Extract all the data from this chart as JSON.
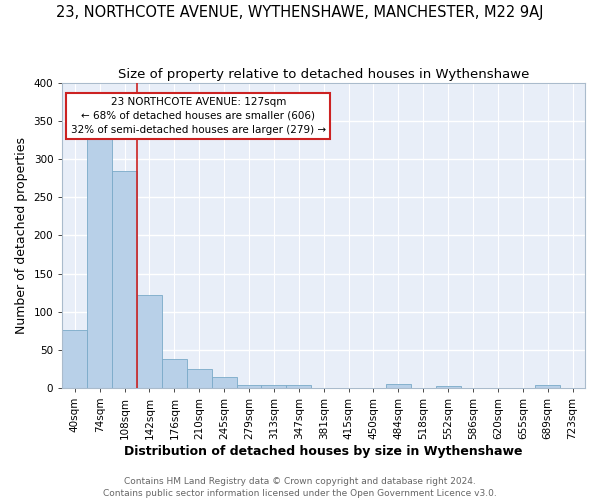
{
  "title": "23, NORTHCOTE AVENUE, WYTHENSHAWE, MANCHESTER, M22 9AJ",
  "subtitle": "Size of property relative to detached houses in Wythenshawe",
  "xlabel": "Distribution of detached houses by size in Wythenshawe",
  "ylabel": "Number of detached properties",
  "categories": [
    "40sqm",
    "74sqm",
    "108sqm",
    "142sqm",
    "176sqm",
    "210sqm",
    "245sqm",
    "279sqm",
    "313sqm",
    "347sqm",
    "381sqm",
    "415sqm",
    "450sqm",
    "484sqm",
    "518sqm",
    "552sqm",
    "586sqm",
    "620sqm",
    "655sqm",
    "689sqm",
    "723sqm"
  ],
  "values": [
    76,
    328,
    284,
    122,
    38,
    25,
    14,
    4,
    4,
    4,
    0,
    0,
    0,
    5,
    0,
    3,
    0,
    0,
    0,
    4,
    0
  ],
  "bar_color": "#b8d0e8",
  "bar_edge_color": "#7aaac8",
  "background_color": "#e8eef8",
  "grid_color": "#ffffff",
  "annotation_line1": "23 NORTHCOTE AVENUE: 127sqm",
  "annotation_line2": "← 68% of detached houses are smaller (606)",
  "annotation_line3": "32% of semi-detached houses are larger (279) →",
  "annotation_box_color": "#cc2222",
  "vline_color": "#cc2222",
  "footer_text": "Contains HM Land Registry data © Crown copyright and database right 2024.\nContains public sector information licensed under the Open Government Licence v3.0.",
  "ylim": [
    0,
    400
  ],
  "title_fontsize": 10.5,
  "subtitle_fontsize": 9.5,
  "axis_label_fontsize": 9,
  "tick_fontsize": 7.5,
  "footer_fontsize": 6.5,
  "fig_width": 6.0,
  "fig_height": 5.0,
  "fig_dpi": 100
}
